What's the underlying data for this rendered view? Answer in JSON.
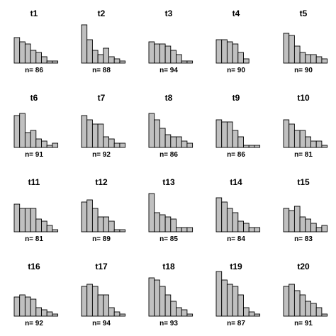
{
  "chart_data": [
    {
      "type": "bar",
      "title": "t1",
      "label": "n= 86",
      "values": [
        12,
        10,
        9,
        6,
        5,
        3,
        1,
        1
      ]
    },
    {
      "type": "bar",
      "title": "t2",
      "label": "n= 88",
      "values": [
        18,
        11,
        6,
        4,
        7,
        3,
        2,
        1
      ]
    },
    {
      "type": "bar",
      "title": "t3",
      "label": "n= 94",
      "values": [
        10,
        9,
        9,
        8,
        6,
        4,
        1,
        1
      ]
    },
    {
      "type": "bar",
      "title": "t4",
      "label": "n= 90",
      "values": [
        11,
        11,
        10,
        9,
        5,
        2,
        0,
        0
      ]
    },
    {
      "type": "bar",
      "title": "t5",
      "label": "n= 90",
      "values": [
        14,
        13,
        8,
        5,
        4,
        4,
        3,
        2
      ]
    },
    {
      "type": "bar",
      "title": "t6",
      "label": "n= 91",
      "values": [
        15,
        16,
        7,
        8,
        4,
        3,
        1,
        2
      ]
    },
    {
      "type": "bar",
      "title": "t7",
      "label": "n= 92",
      "values": [
        15,
        13,
        11,
        11,
        5,
        4,
        2,
        2
      ]
    },
    {
      "type": "bar",
      "title": "t8",
      "label": "n= 86",
      "values": [
        16,
        13,
        9,
        6,
        5,
        5,
        3,
        2
      ]
    },
    {
      "type": "bar",
      "title": "t9",
      "label": "n= 86",
      "values": [
        13,
        12,
        12,
        8,
        5,
        1,
        1,
        1
      ]
    },
    {
      "type": "bar",
      "title": "t10",
      "label": "n= 81",
      "values": [
        13,
        11,
        8,
        8,
        5,
        3,
        3,
        1
      ]
    },
    {
      "type": "bar",
      "title": "t11",
      "label": "n= 81",
      "values": [
        13,
        11,
        11,
        11,
        6,
        5,
        3,
        1
      ]
    },
    {
      "type": "bar",
      "title": "t12",
      "label": "n= 89",
      "values": [
        14,
        15,
        11,
        7,
        7,
        5,
        1,
        1
      ]
    },
    {
      "type": "bar",
      "title": "t13",
      "label": "n= 85",
      "values": [
        18,
        9,
        8,
        7,
        6,
        2,
        2,
        2
      ]
    },
    {
      "type": "bar",
      "title": "t14",
      "label": "n= 84",
      "values": [
        16,
        14,
        11,
        9,
        5,
        4,
        2,
        2
      ]
    },
    {
      "type": "bar",
      "title": "t15",
      "label": "n= 83",
      "values": [
        11,
        10,
        12,
        7,
        6,
        4,
        2,
        3
      ]
    },
    {
      "type": "bar",
      "title": "t16",
      "label": "n= 92",
      "values": [
        9,
        10,
        9,
        8,
        4,
        3,
        2,
        1
      ]
    },
    {
      "type": "bar",
      "title": "t17",
      "label": "n= 94",
      "values": [
        14,
        15,
        14,
        10,
        10,
        4,
        2,
        1
      ]
    },
    {
      "type": "bar",
      "title": "t18",
      "label": "n= 93",
      "values": [
        18,
        17,
        14,
        10,
        7,
        4,
        3,
        1
      ]
    },
    {
      "type": "bar",
      "title": "t19",
      "label": "n= 87",
      "values": [
        21,
        17,
        15,
        14,
        10,
        4,
        2,
        1
      ]
    },
    {
      "type": "bar",
      "title": "t20",
      "label": "n= 91",
      "values": [
        14,
        15,
        12,
        10,
        7,
        6,
        4,
        1
      ]
    }
  ]
}
